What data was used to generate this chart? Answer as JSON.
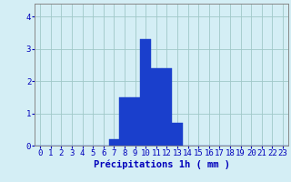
{
  "categories": [
    0,
    1,
    2,
    3,
    4,
    5,
    6,
    7,
    8,
    9,
    10,
    11,
    12,
    13,
    14,
    15,
    16,
    17,
    18,
    19,
    20,
    21,
    22,
    23
  ],
  "values": [
    0,
    0,
    0,
    0,
    0,
    0,
    0,
    0.2,
    1.5,
    1.5,
    3.3,
    2.4,
    2.4,
    0.7,
    0,
    0,
    0,
    0,
    0,
    0,
    0,
    0,
    0,
    0
  ],
  "bar_color": "#1a3fcc",
  "bar_edge_color": "#1a3fcc",
  "background_color": "#d4eef5",
  "grid_color": "#a0c8c8",
  "axis_label_color": "#0000bb",
  "tick_color": "#0000bb",
  "xlabel": "Précipitations 1h ( mm )",
  "ylim": [
    0,
    4.4
  ],
  "xlim": [
    -0.5,
    23.5
  ],
  "yticks": [
    0,
    1,
    2,
    3,
    4
  ],
  "xticks": [
    0,
    1,
    2,
    3,
    4,
    5,
    6,
    7,
    8,
    9,
    10,
    11,
    12,
    13,
    14,
    15,
    16,
    17,
    18,
    19,
    20,
    21,
    22,
    23
  ],
  "xlabel_fontsize": 7.5,
  "tick_fontsize": 6.5
}
